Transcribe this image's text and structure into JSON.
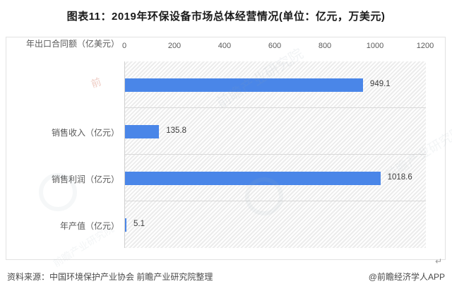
{
  "title": "图表11：2019年环保设备市场总体经营情况(单位：亿元，万美元)",
  "chart_data": {
    "type": "bar",
    "orientation": "horizontal",
    "title": "图表11：2019年环保设备市场总体经营情况(单位：亿元，万美元)",
    "categories": [
      "销售收入（亿元）",
      "销售利润（亿元）",
      "年产值（亿元）",
      "年出口合同额（亿美元）"
    ],
    "values": [
      949.1,
      135.8,
      1018.6,
      5.1
    ],
    "value_labels": [
      "949.1",
      "135.8",
      "1018.6",
      "5.1"
    ],
    "x_ticks": [
      "0",
      "200",
      "400",
      "600",
      "800",
      "1000",
      "1200"
    ],
    "xlim": [
      0,
      1200
    ],
    "xlabel": "",
    "ylabel": "",
    "bar_color": "#4a86e8",
    "grid": false,
    "legend": "none",
    "axis_position": "top",
    "plot_background": "diagonal-hatch"
  },
  "footer": {
    "source": "资料来源：中国环境保护产业协会 前瞻产业研究院整理",
    "credit": "@前瞻经济学人APP"
  },
  "watermark": {
    "text": "前瞻产业研究院",
    "logo_text": "前"
  },
  "misc": {
    "return_mark": "↵"
  }
}
